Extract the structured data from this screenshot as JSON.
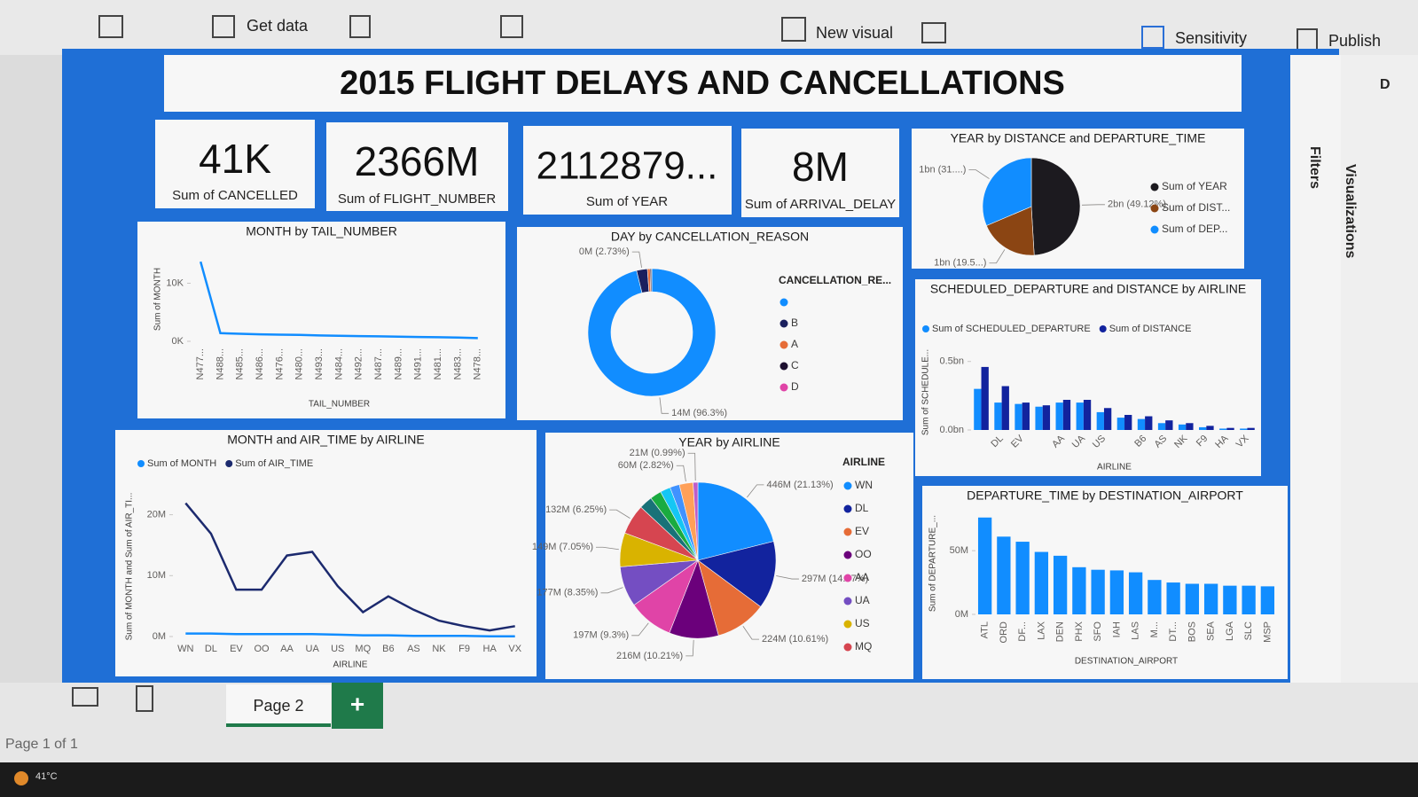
{
  "toolbar": {
    "get_data": "Get data",
    "new_visual": "New visual",
    "sensitivity": "Sensitivity",
    "publish": "Publish"
  },
  "report": {
    "title": "2015 FLIGHT DELAYS AND CANCELLATIONS",
    "cards": [
      {
        "value": "41K",
        "label": "Sum of CANCELLED"
      },
      {
        "value": "2366M",
        "label": "Sum of FLIGHT_NUMBER"
      },
      {
        "value": "2112879...",
        "label": "Sum of YEAR"
      },
      {
        "value": "8M",
        "label": "Sum of ARRIVAL_DELAY"
      }
    ]
  },
  "chart_data": [
    {
      "type": "line",
      "title": "MONTH by TAIL_NUMBER",
      "y_label": "Sum of MONTH",
      "x_label": "TAIL_NUMBER",
      "categories": [
        "N477...",
        "N488...",
        "N485...",
        "N486...",
        "N476...",
        "N480...",
        "N493...",
        "N484...",
        "N492...",
        "N487...",
        "N489...",
        "N491...",
        "N481...",
        "N483...",
        "N478..."
      ],
      "series": [
        {
          "color": "#118DFF",
          "values": [
            13700,
            1400,
            1300,
            1200,
            1150,
            1100,
            1000,
            950,
            900,
            850,
            800,
            750,
            700,
            650,
            550
          ]
        }
      ],
      "ylim": [
        0,
        14500
      ],
      "yticks": [
        {
          "value": 0,
          "label": "0K"
        },
        {
          "value": 10000,
          "label": "10K"
        }
      ]
    },
    {
      "type": "donut",
      "title": "DAY by CANCELLATION_REASON",
      "legend_title": "CANCELLATION_RE...",
      "categories": [
        null,
        "B",
        "A",
        "C",
        "D"
      ],
      "values": [
        14,
        0.4,
        0.1,
        0.05,
        0.01
      ],
      "value_labels": [
        "14M (96.3%)",
        "0M (2.73%)",
        null,
        null,
        null
      ],
      "colors": [
        "#118DFF",
        "#1a1f5e",
        "#E66C37",
        "#1d1030",
        "#E044A7"
      ]
    },
    {
      "type": "pie",
      "title": "YEAR by DISTANCE and DEPARTURE_TIME",
      "categories": [
        "Sum of YEAR",
        "Sum of DIST...",
        "Sum of DEP..."
      ],
      "values": [
        2.11,
        0.84,
        1.35
      ],
      "value_labels": [
        "2bn (49.12%)",
        "1bn (19.5...)",
        "1bn (31....)"
      ],
      "colors": [
        "#1c1a1f",
        "#8B4513",
        "#118DFF"
      ]
    },
    {
      "type": "bar",
      "title": "SCHEDULED_DEPARTURE and DISTANCE by AIRLINE",
      "y_label": "Sum of SCHEDULE...",
      "x_label": "AIRLINE",
      "categories": [
        null,
        "DL",
        "EV",
        null,
        "AA",
        "UA",
        "US",
        null,
        "B6",
        "AS",
        "NK",
        "F9",
        "HA",
        "VX"
      ],
      "series": [
        {
          "name": "Sum of SCHEDULED_DEPARTURE",
          "color": "#118DFF",
          "values": [
            0.3,
            0.2,
            0.19,
            0.17,
            0.2,
            0.2,
            0.13,
            0.09,
            0.08,
            0.05,
            0.04,
            0.02,
            0.01,
            0.01
          ]
        },
        {
          "name": "Sum of DISTANCE",
          "color": "#12239E",
          "values": [
            0.46,
            0.32,
            0.2,
            0.18,
            0.22,
            0.22,
            0.16,
            0.11,
            0.1,
            0.07,
            0.05,
            0.03,
            0.015,
            0.015
          ]
        }
      ],
      "ylim": [
        0,
        0.55
      ],
      "yticks": [
        {
          "value": 0,
          "label": "0.0bn"
        },
        {
          "value": 0.5,
          "label": "0.5bn"
        }
      ]
    },
    {
      "type": "line",
      "title": "MONTH and AIR_TIME by AIRLINE",
      "y_label": "Sum of MONTH and Sum of AIR_TI...",
      "x_label": "AIRLINE",
      "categories": [
        "WN",
        "DL",
        "EV",
        "OO",
        "AA",
        "UA",
        "US",
        "MQ",
        "B6",
        "AS",
        "NK",
        "F9",
        "HA",
        "VX"
      ],
      "series": [
        {
          "name": "Sum of MONTH",
          "color": "#118DFF",
          "values": [
            0.5,
            0.5,
            0.4,
            0.4,
            0.4,
            0.4,
            0.3,
            0.2,
            0.2,
            0.1,
            0.1,
            0.1,
            0.05,
            0.05
          ]
        },
        {
          "name": "Sum of AIR_TIME",
          "color": "#1c2a6e",
          "values": [
            21.9,
            16.9,
            7.7,
            7.7,
            13.3,
            13.9,
            8.3,
            4,
            6.6,
            4.4,
            2.6,
            1.7,
            1,
            1.7
          ]
        }
      ],
      "ylim": [
        0,
        23
      ],
      "yticks": [
        {
          "value": 0,
          "label": "0M"
        },
        {
          "value": 10,
          "label": "10M"
        },
        {
          "value": 20,
          "label": "20M"
        }
      ]
    },
    {
      "type": "pie",
      "title": "YEAR by AIRLINE",
      "legend_title": "AIRLINE",
      "categories": [
        "WN",
        "DL",
        "EV",
        "OO",
        "AA",
        "UA",
        "US",
        "MQ",
        null,
        null,
        null,
        null,
        null,
        null
      ],
      "values": [
        446,
        297,
        224,
        216,
        197,
        177,
        149,
        132,
        58,
        50,
        45,
        42,
        60,
        21
      ],
      "value_labels": [
        "446M (21.13%)",
        "297M (14.07%)",
        "224M (10.61%)",
        "216M (10.21%)",
        "197M (9.3%)",
        "177M (8.35%)",
        "149M (7.05%)",
        "132M (6.25%)",
        null,
        null,
        null,
        null,
        "60M (2.82%)",
        "21M (0.99%)"
      ],
      "colors": [
        "#118DFF",
        "#12239E",
        "#E66C37",
        "#6B007B",
        "#E044A7",
        "#744EC2",
        "#D9B300",
        "#D64550",
        "#197278",
        "#1AAB40",
        "#15C6F4",
        "#4092FF",
        "#FFA058",
        "#BE5DC9"
      ]
    },
    {
      "type": "bar",
      "title": "DEPARTURE_TIME by DESTINATION_AIRPORT",
      "y_label": "Sum of DEPARTURE_...",
      "x_label": "DESTINATION_AIRPORT",
      "categories": [
        "ATL",
        "ORD",
        "DF...",
        "LAX",
        "DEN",
        "PHX",
        "SFO",
        "IAH",
        "LAS",
        "M...",
        "DT...",
        "BOS",
        "SEA",
        "LGA",
        "SLC",
        "MSP"
      ],
      "series": [
        {
          "color": "#118DFF",
          "values": [
            76,
            61,
            57,
            49,
            46,
            37,
            35,
            34.5,
            33,
            27,
            25,
            24,
            24,
            22.5,
            22.5,
            22
          ]
        }
      ],
      "ylim": [
        0,
        80
      ],
      "yticks": [
        {
          "value": 0,
          "label": "0M"
        },
        {
          "value": 50,
          "label": "50M"
        }
      ]
    }
  ],
  "panes": {
    "filters": "Filters",
    "visualizations": "Visualizations",
    "data": "D"
  },
  "pages": {
    "tab": "Page 2",
    "add": "+",
    "status": "Page 1 of 1"
  },
  "taskbar": {
    "temperature": "41°C"
  }
}
